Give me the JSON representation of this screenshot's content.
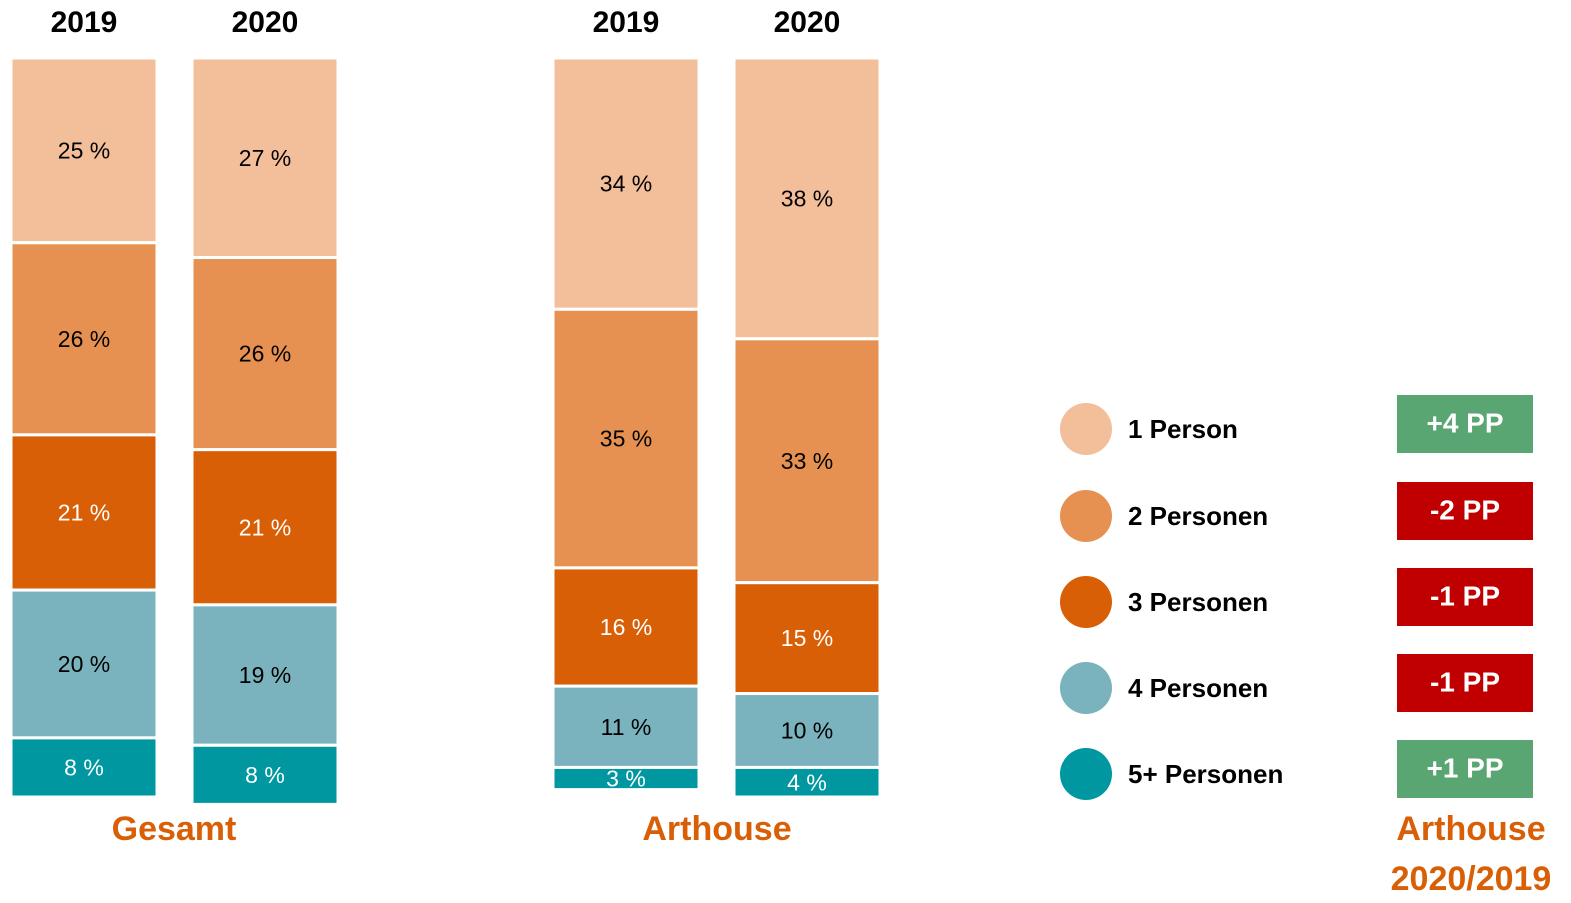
{
  "chart_data": {
    "type": "bar",
    "stacked": true,
    "groups": [
      "Gesamt",
      "Arthouse"
    ],
    "categories": [
      "2019",
      "2020",
      "2019",
      "2020"
    ],
    "series": [
      {
        "name": "1 Person",
        "color": "#f3be9a",
        "label_color": "#000000",
        "values": [
          25,
          27,
          34,
          38
        ],
        "value_labels": [
          "25 %",
          "27 %",
          "34 %",
          "38 %"
        ]
      },
      {
        "name": "2 Personen",
        "color": "#e69152",
        "label_color": "#000000",
        "values": [
          26,
          26,
          35,
          33
        ],
        "value_labels": [
          "26 %",
          "26 %",
          "35 %",
          "33 %"
        ]
      },
      {
        "name": "3 Personen",
        "color": "#d95f07",
        "label_color": "#ffffff",
        "values": [
          21,
          21,
          16,
          15
        ],
        "value_labels": [
          "21 %",
          "21 %",
          "16 %",
          "15 %"
        ]
      },
      {
        "name": "4 Personen",
        "color": "#7ab3bd",
        "label_color": "#000000",
        "values": [
          20,
          19,
          11,
          10
        ],
        "value_labels": [
          "20 %",
          "19 %",
          "11 %",
          "10 %"
        ]
      },
      {
        "name": "5+ Personen",
        "color": "#0097a1",
        "label_color": "#ffffff",
        "values": [
          8,
          8,
          3,
          4
        ],
        "value_labels": [
          "8 %",
          "8 %",
          "3 %",
          "4 %"
        ]
      }
    ],
    "change": {
      "title_lines": [
        "Arthouse",
        "2020/2019"
      ],
      "values": [
        4,
        -2,
        -1,
        -1,
        1
      ],
      "value_labels": [
        "+4 PP",
        "-2 PP",
        "-1 PP",
        "-1 PP",
        "+1 PP"
      ],
      "positive_color": "#5aa672",
      "negative_color": "#c00000"
    }
  }
}
